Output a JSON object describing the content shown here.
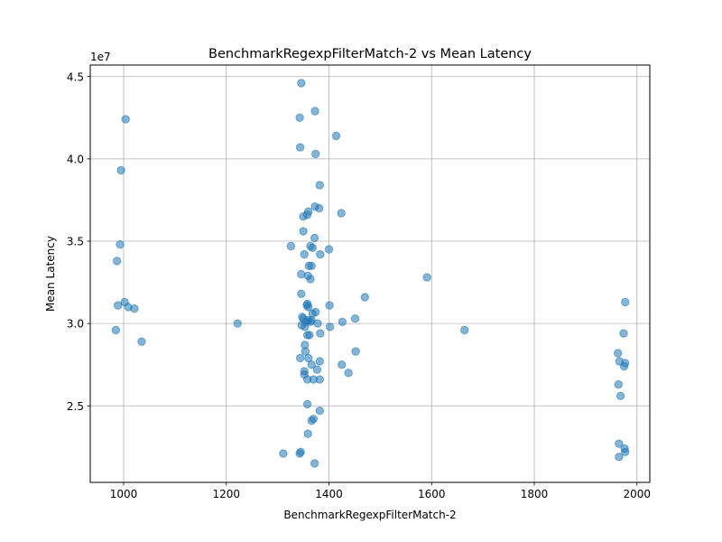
{
  "chart_data": {
    "type": "scatter",
    "title": "BenchmarkRegexpFilterMatch-2 vs Mean Latency",
    "xlabel": "BenchmarkRegexpFilterMatch-2",
    "ylabel": "Mean Latency",
    "y_scale_label": "1e7",
    "xlim": [
      935,
      2025
    ],
    "ylim": [
      20.35,
      45.7
    ],
    "y_scale": 10000000,
    "x_ticks": [
      1000,
      1200,
      1400,
      1600,
      1800,
      2000
    ],
    "y_ticks": [
      25,
      30,
      35,
      40,
      45
    ],
    "x_tick_labels": [
      "1000",
      "1200",
      "1400",
      "1600",
      "1800",
      "2000"
    ],
    "y_tick_labels": [
      "2.5",
      "3.0",
      "3.5",
      "4.0",
      "4.5"
    ],
    "grid": true,
    "marker_color": "#1f77b4",
    "marker_alpha": 0.55,
    "points": [
      {
        "x": 1004,
        "y": 42.4
      },
      {
        "x": 995,
        "y": 39.3
      },
      {
        "x": 993,
        "y": 34.8
      },
      {
        "x": 987,
        "y": 33.8
      },
      {
        "x": 989,
        "y": 31.1
      },
      {
        "x": 1002,
        "y": 31.3
      },
      {
        "x": 1009,
        "y": 31.0
      },
      {
        "x": 1021,
        "y": 30.9
      },
      {
        "x": 985,
        "y": 29.6
      },
      {
        "x": 1035,
        "y": 28.9
      },
      {
        "x": 1222,
        "y": 30.0
      },
      {
        "x": 1346,
        "y": 44.6
      },
      {
        "x": 1373,
        "y": 42.9
      },
      {
        "x": 1343,
        "y": 42.5
      },
      {
        "x": 1414,
        "y": 41.4
      },
      {
        "x": 1344,
        "y": 40.7
      },
      {
        "x": 1374,
        "y": 40.3
      },
      {
        "x": 1382,
        "y": 38.4
      },
      {
        "x": 1373,
        "y": 37.1
      },
      {
        "x": 1381,
        "y": 37.0
      },
      {
        "x": 1424,
        "y": 36.7
      },
      {
        "x": 1360,
        "y": 36.8
      },
      {
        "x": 1358,
        "y": 36.6
      },
      {
        "x": 1350,
        "y": 36.5
      },
      {
        "x": 1350,
        "y": 35.6
      },
      {
        "x": 1372,
        "y": 35.2
      },
      {
        "x": 1326,
        "y": 34.7
      },
      {
        "x": 1364,
        "y": 34.7
      },
      {
        "x": 1368,
        "y": 34.6
      },
      {
        "x": 1400,
        "y": 34.5
      },
      {
        "x": 1352,
        "y": 34.2
      },
      {
        "x": 1383,
        "y": 34.2
      },
      {
        "x": 1361,
        "y": 33.5
      },
      {
        "x": 1366,
        "y": 33.5
      },
      {
        "x": 1346,
        "y": 33.0
      },
      {
        "x": 1359,
        "y": 32.9
      },
      {
        "x": 1364,
        "y": 32.7
      },
      {
        "x": 1591,
        "y": 32.8
      },
      {
        "x": 1346,
        "y": 31.8
      },
      {
        "x": 1470,
        "y": 31.6
      },
      {
        "x": 1358,
        "y": 31.2
      },
      {
        "x": 1357,
        "y": 31.1
      },
      {
        "x": 1401,
        "y": 31.1
      },
      {
        "x": 1360,
        "y": 31.0
      },
      {
        "x": 1368,
        "y": 30.6
      },
      {
        "x": 1374,
        "y": 30.7
      },
      {
        "x": 1348,
        "y": 30.4
      },
      {
        "x": 1359,
        "y": 30.2
      },
      {
        "x": 1364,
        "y": 30.1
      },
      {
        "x": 1350,
        "y": 30.3
      },
      {
        "x": 1355,
        "y": 30.1
      },
      {
        "x": 1366,
        "y": 30.2
      },
      {
        "x": 1378,
        "y": 30.0
      },
      {
        "x": 1426,
        "y": 30.1
      },
      {
        "x": 1451,
        "y": 30.3
      },
      {
        "x": 1347,
        "y": 29.9
      },
      {
        "x": 1353,
        "y": 29.8
      },
      {
        "x": 1402,
        "y": 29.8
      },
      {
        "x": 1358,
        "y": 29.3
      },
      {
        "x": 1362,
        "y": 29.3
      },
      {
        "x": 1383,
        "y": 29.4
      },
      {
        "x": 1664,
        "y": 29.6
      },
      {
        "x": 1353,
        "y": 28.7
      },
      {
        "x": 1354,
        "y": 28.3
      },
      {
        "x": 1452,
        "y": 28.3
      },
      {
        "x": 1344,
        "y": 27.9
      },
      {
        "x": 1360,
        "y": 27.9
      },
      {
        "x": 1366,
        "y": 27.5
      },
      {
        "x": 1382,
        "y": 27.7
      },
      {
        "x": 1425,
        "y": 27.5
      },
      {
        "x": 1352,
        "y": 27.1
      },
      {
        "x": 1352,
        "y": 26.9
      },
      {
        "x": 1377,
        "y": 27.2
      },
      {
        "x": 1438,
        "y": 27.0
      },
      {
        "x": 1358,
        "y": 26.6
      },
      {
        "x": 1370,
        "y": 26.6
      },
      {
        "x": 1382,
        "y": 26.6
      },
      {
        "x": 1358,
        "y": 25.1
      },
      {
        "x": 1382,
        "y": 24.7
      },
      {
        "x": 1370,
        "y": 24.2
      },
      {
        "x": 1366,
        "y": 24.1
      },
      {
        "x": 1359,
        "y": 23.3
      },
      {
        "x": 1311,
        "y": 22.1
      },
      {
        "x": 1343,
        "y": 22.1
      },
      {
        "x": 1345,
        "y": 22.2
      },
      {
        "x": 1372,
        "y": 21.5
      },
      {
        "x": 1977,
        "y": 31.3
      },
      {
        "x": 1974,
        "y": 29.4
      },
      {
        "x": 1963,
        "y": 28.2
      },
      {
        "x": 1966,
        "y": 27.7
      },
      {
        "x": 1977,
        "y": 27.6
      },
      {
        "x": 1975,
        "y": 27.4
      },
      {
        "x": 1964,
        "y": 26.3
      },
      {
        "x": 1968,
        "y": 25.6
      },
      {
        "x": 1965,
        "y": 22.7
      },
      {
        "x": 1976,
        "y": 22.4
      },
      {
        "x": 1977,
        "y": 22.2
      },
      {
        "x": 1965,
        "y": 21.9
      }
    ]
  }
}
